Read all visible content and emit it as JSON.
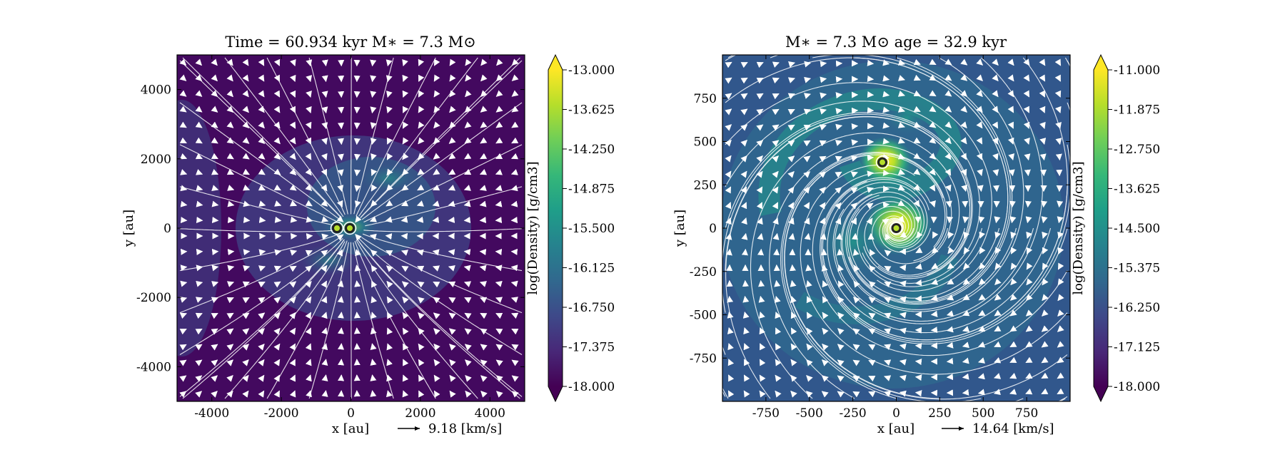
{
  "colorbar_colors": [
    "#440154",
    "#482878",
    "#3e4989",
    "#31688e",
    "#26828e",
    "#1f9e89",
    "#35b779",
    "#6ece58",
    "#b5de2b",
    "#fde725"
  ],
  "chart_data": [
    {
      "type": "heatmap",
      "subtype": "density map with velocity streamlines",
      "title": "Time = 60.934 kyr    M∗ = 7.3 M⊙",
      "xlabel": "x [au]",
      "ylabel": "y [au]",
      "xlim": [
        -5000,
        5000
      ],
      "ylim": [
        -5000,
        5000
      ],
      "xticks": [
        "-4000",
        "-2000",
        "0",
        "2000",
        "4000"
      ],
      "yticks": [
        "4000",
        "2000",
        "0",
        "-2000",
        "-4000"
      ],
      "colorbar": {
        "label": "log(Density) [g/cm3]",
        "min": -18.0,
        "max": -13.0,
        "ticks": [
          "-13.000",
          "-13.625",
          "-14.250",
          "-14.875",
          "-15.500",
          "-16.125",
          "-16.750",
          "-17.375",
          "-18.000"
        ]
      },
      "velocity_scale": "9.18 [km/s]",
      "stars": [
        {
          "x": -400,
          "y": 0
        },
        {
          "x": -30,
          "y": 0
        }
      ],
      "background": "#43095f",
      "colormap": "viridis"
    },
    {
      "type": "heatmap",
      "subtype": "density map with velocity streamlines",
      "title": "M∗ = 7.3 M⊙          age = 32.9 kyr",
      "xlabel": "x [au]",
      "ylabel": "y [au]",
      "xlim": [
        -1000,
        1000
      ],
      "ylim": [
        -1000,
        1000
      ],
      "xticks": [
        "-750",
        "-500",
        "-250",
        "0",
        "250",
        "500",
        "750"
      ],
      "yticks": [
        "750",
        "500",
        "250",
        "0",
        "-250",
        "-500",
        "-750"
      ],
      "colorbar": {
        "label": "log(Density) [g/cm3]",
        "min": -18.0,
        "max": -11.0,
        "ticks": [
          "-11.000",
          "-11.875",
          "-12.750",
          "-13.625",
          "-14.500",
          "-15.375",
          "-16.250",
          "-17.125",
          "-18.000"
        ]
      },
      "velocity_scale": "14.64 [km/s]",
      "stars": [
        {
          "x": -80,
          "y": 380
        },
        {
          "x": 0,
          "y": 0
        }
      ],
      "background": "#31578c",
      "colormap": "viridis"
    }
  ]
}
